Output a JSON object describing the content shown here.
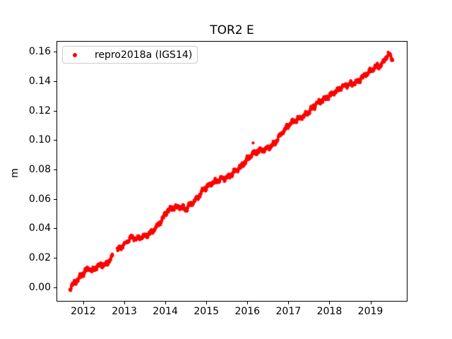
{
  "figure": {
    "title": "TOR2 E",
    "ylabel": "m",
    "legend_label": "repro2018a (IGS14)"
  },
  "colors": {
    "marker": "#ff0000",
    "axis": "#000000",
    "legend_border": "#cccccc",
    "background": "#ffffff"
  },
  "chart_data": {
    "type": "scatter",
    "title": "TOR2 E",
    "xlabel": "",
    "ylabel": "m",
    "grid": false,
    "legend_position": "upper left",
    "xlim": [
      2011.346,
      2019.904
    ],
    "ylim": [
      -0.0097,
      0.1673
    ],
    "x_ticks": [
      2012,
      2013,
      2014,
      2015,
      2016,
      2017,
      2018,
      2019
    ],
    "y_ticks": [
      "0.00",
      "0.02",
      "0.04",
      "0.06",
      "0.08",
      "0.10",
      "0.12",
      "0.14",
      "0.16"
    ],
    "series": [
      {
        "name": "repro2018a (IGS14)",
        "color": "#ff0000",
        "marker": "point",
        "marker_radius_px": 2.1,
        "x_start": 2011.67,
        "x_end": 2019.55,
        "sample_interval_years": 0.0055,
        "noise_amplitude": 0.0022,
        "gaps": [
          [
            2012.72,
            2012.82
          ]
        ],
        "outliers": [
          [
            2016.14,
            0.098
          ]
        ],
        "trend_anchors": [
          [
            2011.67,
            -0.001
          ],
          [
            2011.75,
            0.002
          ],
          [
            2011.85,
            0.005
          ],
          [
            2011.95,
            0.008
          ],
          [
            2012.05,
            0.011
          ],
          [
            2012.13,
            0.013
          ],
          [
            2012.22,
            0.011
          ],
          [
            2012.32,
            0.014
          ],
          [
            2012.42,
            0.015
          ],
          [
            2012.52,
            0.015
          ],
          [
            2012.6,
            0.017
          ],
          [
            2012.72,
            0.021
          ],
          [
            2012.82,
            0.025
          ],
          [
            2012.92,
            0.027
          ],
          [
            2013.0,
            0.029
          ],
          [
            2013.15,
            0.034
          ],
          [
            2013.3,
            0.033
          ],
          [
            2013.45,
            0.034
          ],
          [
            2013.6,
            0.036
          ],
          [
            2013.75,
            0.04
          ],
          [
            2013.9,
            0.045
          ],
          [
            2014.05,
            0.052
          ],
          [
            2014.2,
            0.054
          ],
          [
            2014.35,
            0.055
          ],
          [
            2014.5,
            0.053
          ],
          [
            2014.65,
            0.057
          ],
          [
            2014.8,
            0.061
          ],
          [
            2014.95,
            0.067
          ],
          [
            2015.1,
            0.07
          ],
          [
            2015.25,
            0.072
          ],
          [
            2015.4,
            0.074
          ],
          [
            2015.55,
            0.075
          ],
          [
            2015.7,
            0.079
          ],
          [
            2015.85,
            0.082
          ],
          [
            2016.0,
            0.087
          ],
          [
            2016.15,
            0.091
          ],
          [
            2016.3,
            0.093
          ],
          [
            2016.45,
            0.094
          ],
          [
            2016.6,
            0.096
          ],
          [
            2016.72,
            0.1
          ],
          [
            2016.88,
            0.106
          ],
          [
            2017.0,
            0.11
          ],
          [
            2017.15,
            0.113
          ],
          [
            2017.3,
            0.115
          ],
          [
            2017.45,
            0.118
          ],
          [
            2017.6,
            0.122
          ],
          [
            2017.75,
            0.126
          ],
          [
            2017.9,
            0.128
          ],
          [
            2018.0,
            0.13
          ],
          [
            2018.2,
            0.134
          ],
          [
            2018.35,
            0.137
          ],
          [
            2018.55,
            0.138
          ],
          [
            2018.7,
            0.14
          ],
          [
            2018.85,
            0.144
          ],
          [
            2019.0,
            0.147
          ],
          [
            2019.15,
            0.15
          ],
          [
            2019.28,
            0.151
          ],
          [
            2019.37,
            0.156
          ],
          [
            2019.45,
            0.158
          ],
          [
            2019.55,
            0.155
          ]
        ]
      }
    ]
  }
}
